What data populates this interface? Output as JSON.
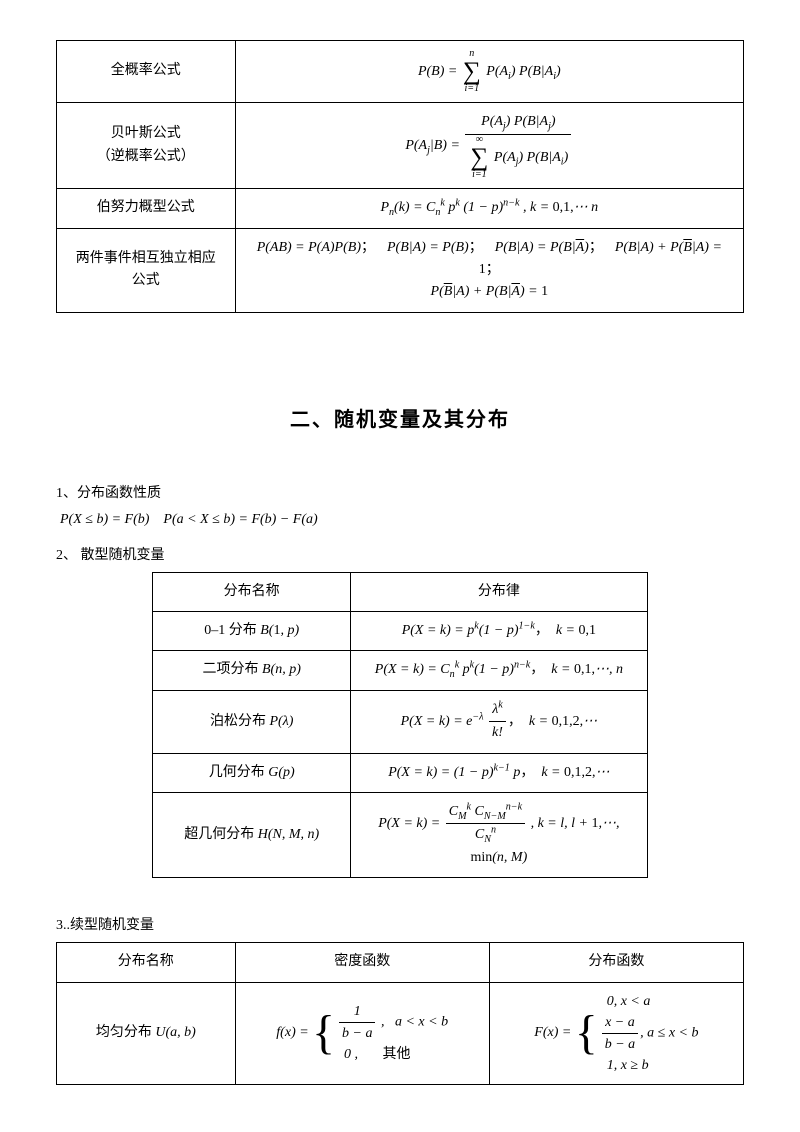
{
  "table1": {
    "rows": [
      {
        "label": "全概率公式",
        "formula_html": "<span class='math'>P(B) = <span class='sum'><span class='top'>n</span><span class='sig'>∑</span><span class='bot'>i=1</span></span> P(A<sub>i</sub>) P(B|A<sub>i</sub>)</span>"
      },
      {
        "label": "贝叶斯公式<br>（逆概率公式）",
        "formula_html": "<span class='math'>P(A<sub>j</sub>|B) = <span class='frac'><span class='num'>P(A<sub>j</sub>) P(B|A<sub>j</sub>)</span><span class='den'><span class='sum'><span class='top'>∞</span><span class='sig'>∑</span><span class='bot'>i=1</span></span> P(A<sub>j</sub>) P(B|A<sub>i</sub>)</span></span></span>"
      },
      {
        "label": "伯努力概型公式",
        "formula_html": "<span class='math'>P<sub>n</sub>(k) = C<sub>n</sub><sup>k</sup> p<sup>k</sup> (1 − p)<sup>n−k</sup> , k = <span class='rm'>0,1,</span>⋯<span class='rm'> </span>n</span>"
      },
      {
        "label": "两件事件相互独立相应<br>公式",
        "formula_html": "<span class='math'>P(AB) = P(A)P(B)<span class='rm'>；</span><span class='sp'></span>P(B|A) = P(B)<span class='rm'>；</span><span class='sp'></span>P(B|A) = P(B|<span class='bar'>A</span>)<span class='rm'>；</span><span class='sp'></span>P(B|A) + P(<span class='bar'>B</span>|A) = <span class='rm'>1</span><span class='rm'>；</span><br>P(<span class='bar'>B</span>|A) + P(B|<span class='bar'>A</span>) = <span class='rm'>1</span></span>"
      }
    ]
  },
  "section_title": "二、随机变量及其分布",
  "items": {
    "i1": "1、分布函数性质",
    "i1_formula": "P(X ≤ b) = F(b)&nbsp;&nbsp;&nbsp;&nbsp;P(a < X ≤ b) = F(b) − F(a)",
    "i2": "2、 散型随机变量",
    "i3": "3..续型随机变量"
  },
  "table2": {
    "headers": {
      "name": "分布名称",
      "law": "分布律"
    },
    "rows": [
      {
        "name_html": "0–1 分布 <span class='math'>B(<span class='rm'>1</span>, p)</span>",
        "law_html": "<span class='math'>P(X = k) = p<sup>k</sup>(1 − p)<sup>1−k</sup><span class='rm'>，</span>&nbsp; k = <span class='rm'>0,1</span></span>"
      },
      {
        "name_html": "二项分布 <span class='math'>B(n, p)</span>",
        "law_html": "<span class='math'>P(X = k) = C<sub>n</sub><sup>k</sup> p<sup>k</sup>(1 − p)<sup>n−k</sup><span class='rm'>，</span>&nbsp; k = <span class='rm'>0,1,</span>⋯, n</span>"
      },
      {
        "name_html": "泊松分布 <span class='math'>P(λ)</span>",
        "law_html": "<span class='math'>P(X = k) = e<sup>−λ</sup> <span class='frac'><span class='num'>λ<sup>k</sup></span><span class='den'>k!</span></span><span class='rm'>，</span>&nbsp; k = <span class='rm'>0,1,2,</span>⋯</span>"
      },
      {
        "name_html": "几何分布 <span class='math'>G(p)</span>",
        "law_html": "<span class='math'>P(X = k) = (1 − p)<sup>k−1</sup> p<span class='rm'>，</span>&nbsp; k = <span class='rm'>0,1,2,</span>⋯</span>"
      },
      {
        "name_html": "超几何分布 <span class='math'>H(N, M, n)</span>",
        "law_html": "<span class='math'>P(X = k) = <span class='frac'><span class='num'>C<sub>M</sub><sup>k</sup> C<sub>N−M</sub><sup>n−k</sup></span><span class='den'>C<sub>N</sub><sup>n</sup></span></span> , k = l, l + <span class='rm'>1</span>,⋯, <span class='rm'>min</span>(n, M)</span>"
      }
    ]
  },
  "table3": {
    "headers": {
      "name": "分布名称",
      "density": "密度函数",
      "dist": "分布函数"
    },
    "rows": [
      {
        "name_html": "均匀分布 <span class='math'>U(a, b)</span>",
        "density_html": "<span class='math'>f(x) = <span class='brace-wrap'><span class='brace'>{</span><span class='cases'><span class='row'><span class='frac'><span class='num'>1</span><span class='den'>b − a</span></span> ,&nbsp;&nbsp; a &lt; x &lt; b</span><span class='row'>&nbsp;&nbsp;0 ,&nbsp;&nbsp;&nbsp;&nbsp;&nbsp;&nbsp;&nbsp;<span class='rm'>其他</span></span></span></span></span>",
        "dist_html": "<span class='math'>F(x) = <span class='brace-wrap'><span class='brace'>{</span><span class='cases'><span class='row'>&nbsp;&nbsp;0, x &lt; a</span><span class='row'><span class='frac'><span class='num'>x − a</span><span class='den'>b − a</span></span>, a ≤ x &lt; b</span><span class='row'>&nbsp;&nbsp;1, x ≥ b</span></span></span></span>"
      }
    ]
  }
}
